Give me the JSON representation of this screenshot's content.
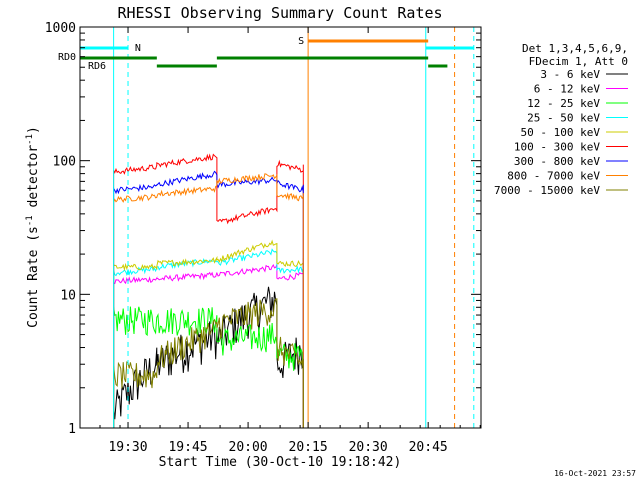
{
  "chart_data": {
    "type": "line",
    "title": "RHESSI Observing Summary Count Rates",
    "xlabel": "Start Time (30-Oct-10 19:18:42)",
    "ylabel_main": "Count Rate (s",
    "ylabel_sup1": "-1",
    "ylabel_mid": " detector",
    "ylabel_sup2": "-1",
    "ylabel_end": ")",
    "footer_date": "16-Oct-2021 23:57",
    "y_scale": "log",
    "ylim": [
      1,
      1000
    ],
    "xlim_minutes": [
      19.3,
      20.97
    ],
    "x_ticks": [
      {
        "label": "19:30",
        "t": 19.5
      },
      {
        "label": "19:45",
        "t": 19.75
      },
      {
        "label": "20:00",
        "t": 20.0
      },
      {
        "label": "20:15",
        "t": 20.25
      },
      {
        "label": "20:30",
        "t": 20.5
      },
      {
        "label": "20:45",
        "t": 20.75
      }
    ],
    "y_ticks": [
      {
        "label": "1",
        "v": 1
      },
      {
        "label": "10",
        "v": 10
      },
      {
        "label": "100",
        "v": 100
      },
      {
        "label": "1000",
        "v": 1000
      }
    ],
    "legend_header": [
      "Det 1,3,4,5,6,9,",
      "FDecim 1, Att 0"
    ],
    "legend_position": "right",
    "series": [
      {
        "name": "3 - 6 keV",
        "color": "#000000",
        "segments": [
          [
            19.44,
            19.62,
            1.3,
            3.0
          ],
          [
            19.62,
            19.87,
            3.0,
            5.0
          ],
          [
            19.87,
            20.12,
            4.5,
            9.5
          ],
          [
            20.12,
            20.23,
            3.0,
            4.0
          ]
        ]
      },
      {
        "name": "6 - 12 keV",
        "color": "#ff00ff",
        "segments": [
          [
            19.44,
            19.62,
            12.5,
            13.0
          ],
          [
            19.62,
            19.87,
            13.0,
            14.0
          ],
          [
            19.87,
            20.12,
            14.0,
            16.0
          ],
          [
            20.12,
            20.23,
            13.0,
            14.0
          ]
        ]
      },
      {
        "name": "12 - 25 keV",
        "color": "#00ff00",
        "segments": [
          [
            19.44,
            19.62,
            6.5,
            6.5
          ],
          [
            19.62,
            19.87,
            6.5,
            6.5
          ],
          [
            19.87,
            20.12,
            4.5,
            5.0
          ],
          [
            20.12,
            20.23,
            3.5,
            3.5
          ]
        ]
      },
      {
        "name": "25 - 50 keV",
        "color": "#00ffff",
        "segments": [
          [
            19.44,
            19.62,
            14.5,
            15.5
          ],
          [
            19.62,
            19.87,
            16.0,
            18.0
          ],
          [
            19.87,
            20.12,
            17.0,
            21.0
          ],
          [
            20.12,
            20.23,
            15.0,
            15.5
          ]
        ]
      },
      {
        "name": "50 - 100 keV",
        "color": "#cccc00",
        "segments": [
          [
            19.44,
            19.62,
            16.0,
            16.0
          ],
          [
            19.62,
            19.87,
            17.0,
            18.0
          ],
          [
            19.87,
            20.12,
            18.0,
            25.0
          ],
          [
            20.12,
            20.23,
            17.0,
            17.0
          ]
        ]
      },
      {
        "name": "100 - 300 keV",
        "color": "#ff0000",
        "segments": [
          [
            19.44,
            19.62,
            82.0,
            90.0
          ],
          [
            19.62,
            19.87,
            92.0,
            108.0
          ],
          [
            19.87,
            20.12,
            34.0,
            44.0
          ],
          [
            20.12,
            20.23,
            95.0,
            85.0
          ]
        ]
      },
      {
        "name": "300 - 800 keV",
        "color": "#0000ff",
        "segments": [
          [
            19.44,
            19.62,
            60.0,
            64.0
          ],
          [
            19.62,
            19.87,
            66.0,
            80.0
          ],
          [
            19.87,
            20.12,
            66.0,
            72.0
          ],
          [
            20.12,
            20.23,
            68.0,
            60.0
          ]
        ]
      },
      {
        "name": "800 - 7000 keV",
        "color": "#ff8000",
        "segments": [
          [
            19.44,
            19.62,
            51.0,
            54.0
          ],
          [
            19.62,
            19.87,
            56.0,
            62.0
          ],
          [
            19.87,
            20.12,
            70.0,
            78.0
          ],
          [
            20.12,
            20.23,
            56.0,
            52.0
          ]
        ]
      },
      {
        "name": "7000 - 15000 keV",
        "color": "#808000",
        "segments": [
          [
            19.44,
            19.62,
            2.5,
            2.5
          ],
          [
            19.62,
            19.87,
            3.2,
            5.5
          ],
          [
            19.87,
            20.12,
            6.0,
            8.0
          ],
          [
            20.12,
            20.23,
            4.0,
            3.0
          ]
        ]
      }
    ],
    "flags": [
      {
        "label": "N",
        "color": "#00ffff",
        "segments": [
          [
            19.3,
            19.5
          ],
          [
            20.74,
            20.94
          ]
        ]
      },
      {
        "label": "S",
        "color": "#ff8000",
        "segments": [
          [
            20.25,
            20.75
          ]
        ]
      },
      {
        "label": "RD0",
        "color": "#008000",
        "segments": [
          [
            19.3,
            19.62
          ],
          [
            19.87,
            20.75
          ]
        ]
      },
      {
        "label": "RD6",
        "color": "#008000",
        "segments": [
          [
            19.62,
            19.87
          ],
          [
            20.75,
            20.83
          ]
        ]
      }
    ],
    "vertical_markers": [
      {
        "t": 19.44,
        "color": "#00ffff",
        "style": "solid"
      },
      {
        "t": 19.5,
        "color": "#00ffff",
        "style": "dashed"
      },
      {
        "t": 20.25,
        "color": "#ff8000",
        "style": "solid"
      },
      {
        "t": 20.74,
        "color": "#00ffff",
        "style": "solid"
      },
      {
        "t": 20.86,
        "color": "#ff8000",
        "style": "dashed"
      },
      {
        "t": 20.94,
        "color": "#00ffff",
        "style": "dashed"
      }
    ]
  }
}
